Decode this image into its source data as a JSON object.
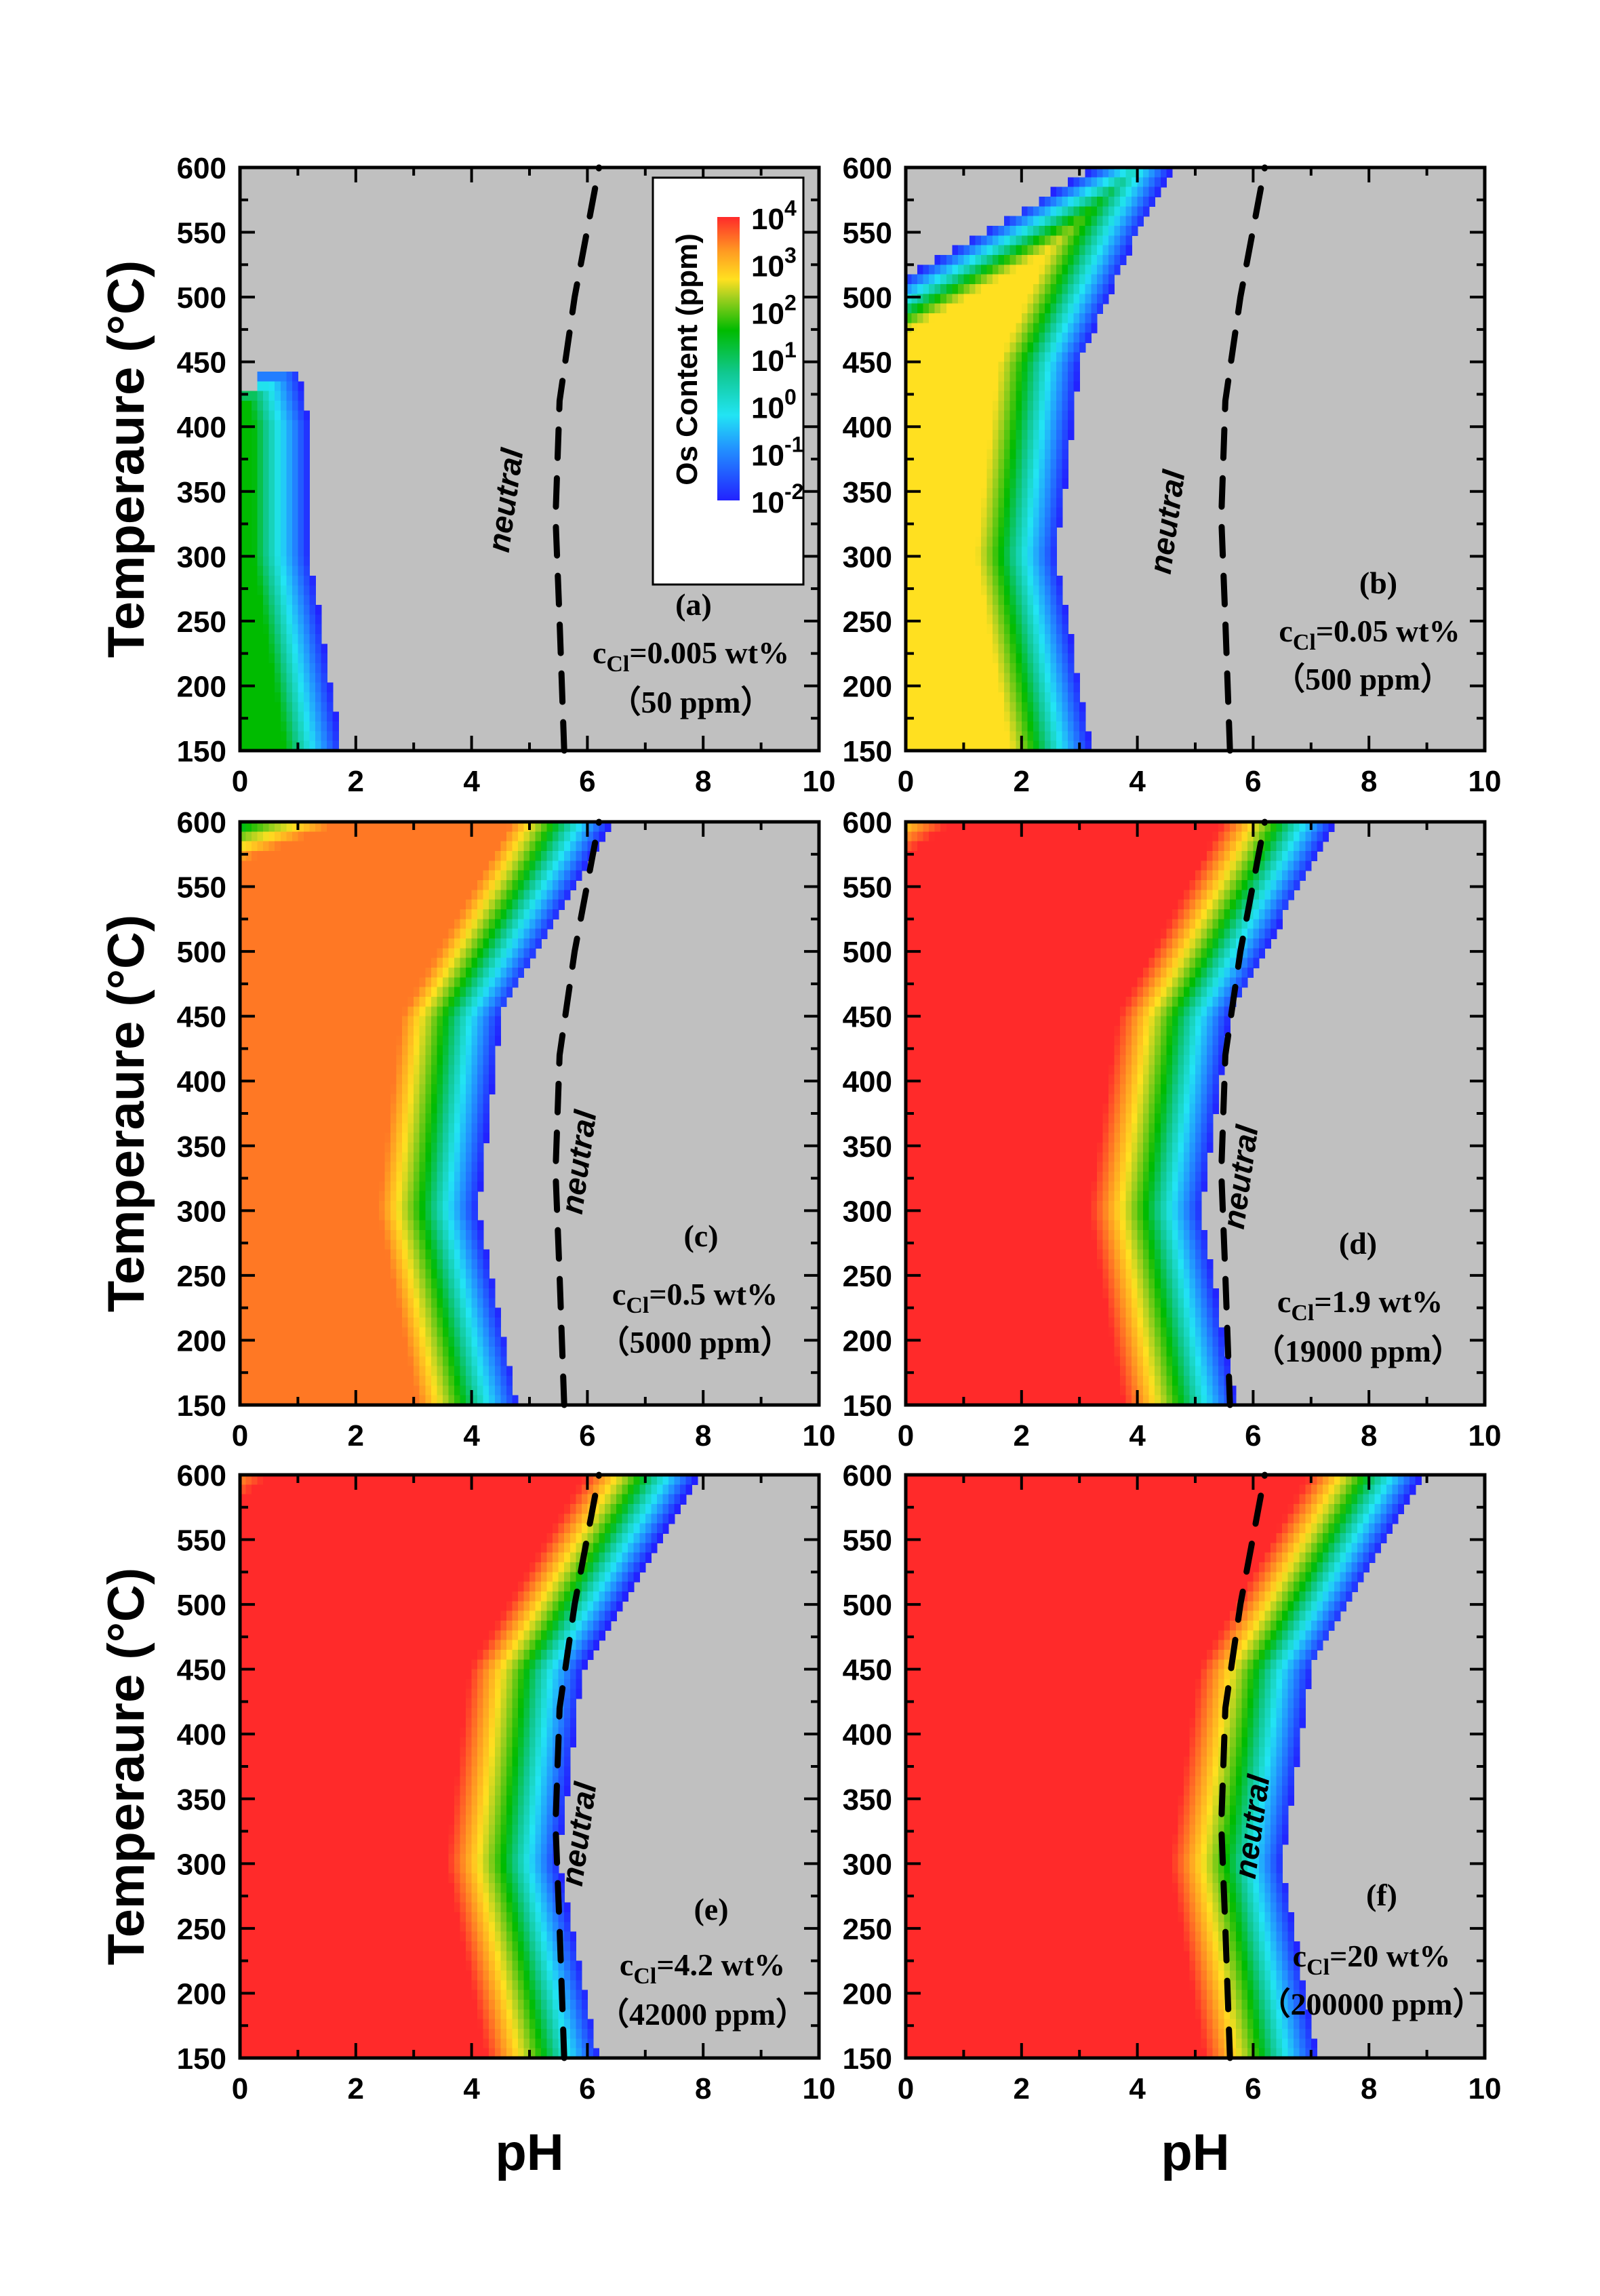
{
  "chart_data": {
    "type": "heatmap",
    "xlabel": "pH",
    "ylabel": "Temperaure (°C)",
    "xlim": [
      0,
      10
    ],
    "ylim": [
      150,
      600
    ],
    "xticks": [
      "0",
      "2",
      "4",
      "6",
      "8",
      "10"
    ],
    "yticks": [
      "150",
      "200",
      "250",
      "300",
      "350",
      "400",
      "450",
      "500",
      "550",
      "600"
    ],
    "colorbar": {
      "label": "Os Content (ppm)",
      "scale": "log",
      "range": [
        0.01,
        10000
      ],
      "ticks": [
        {
          "base": "10",
          "exp": "4"
        },
        {
          "base": "10",
          "exp": "3"
        },
        {
          "base": "10",
          "exp": "2"
        },
        {
          "base": "10",
          "exp": "1"
        },
        {
          "base": "10",
          "exp": "0"
        },
        {
          "base": "10",
          "exp": "-1"
        },
        {
          "base": "10",
          "exp": "-2"
        }
      ],
      "colors": [
        "#2222ff",
        "#22e4f4",
        "#10c890",
        "#00bb00",
        "#ffe020",
        "#ff9a22",
        "#ff2a2a"
      ]
    },
    "background_color": "#c0c0c0",
    "neutral_label": "neutral",
    "neutral_line": [
      [
        5.6,
        150
      ],
      [
        5.52,
        250
      ],
      [
        5.45,
        330
      ],
      [
        5.52,
        420
      ],
      [
        5.78,
        500
      ],
      [
        6.2,
        600
      ]
    ],
    "panels": [
      {
        "label": "(a)",
        "c_symbol": "c",
        "c_sub": "Cl",
        "c_value": "=0.005 wt%",
        "ppm": "（50 ppm）",
        "max_log_ppm": 1.0,
        "front_at_0.01ppm": [
          [
            1.75,
            150
          ],
          [
            1.2,
            300
          ],
          [
            1.2,
            400
          ],
          [
            1.0,
            445
          ]
        ]
      },
      {
        "label": "(b)",
        "c_symbol": "c",
        "c_sub": "Cl",
        "c_value": "=0.05 wt%",
        "ppm": "（500 ppm）",
        "max_log_ppm": 2.3,
        "front_at_0.01ppm": [
          [
            3.2,
            150
          ],
          [
            2.6,
            300
          ],
          [
            3.0,
            450
          ],
          [
            4.0,
            550
          ],
          [
            4.6,
            600
          ]
        ]
      },
      {
        "label": "(c)",
        "c_symbol": "c",
        "c_sub": "Cl",
        "c_value": "=0.5 wt%",
        "ppm": "（5000 ppm）",
        "max_log_ppm": 3.3,
        "front_at_0.01ppm": [
          [
            4.8,
            150
          ],
          [
            4.1,
            300
          ],
          [
            4.5,
            450
          ],
          [
            6.4,
            600
          ]
        ]
      },
      {
        "label": "(d)",
        "c_symbol": "c",
        "c_sub": "Cl",
        "c_value": "=1.9 wt%",
        "ppm": "（19000 ppm）",
        "max_log_ppm": 4.0,
        "front_at_0.01ppm": [
          [
            5.7,
            150
          ],
          [
            5.1,
            300
          ],
          [
            5.6,
            450
          ],
          [
            7.4,
            600
          ]
        ]
      },
      {
        "label": "(e)",
        "c_symbol": "c",
        "c_sub": "Cl",
        "c_value": "=4.2 wt%",
        "ppm": "（42000 ppm）",
        "max_log_ppm": 4.0,
        "front_at_0.01ppm": [
          [
            6.2,
            150
          ],
          [
            5.5,
            300
          ],
          [
            5.9,
            450
          ],
          [
            7.9,
            600
          ]
        ]
      },
      {
        "label": "(f)",
        "c_symbol": "c",
        "c_sub": "Cl",
        "c_value": "=20 wt%",
        "ppm": "（200000 ppm）",
        "max_log_ppm": 4.0,
        "front_at_0.01ppm": [
          [
            7.1,
            150
          ],
          [
            6.5,
            300
          ],
          [
            7.0,
            450
          ],
          [
            8.9,
            600
          ]
        ]
      }
    ]
  }
}
